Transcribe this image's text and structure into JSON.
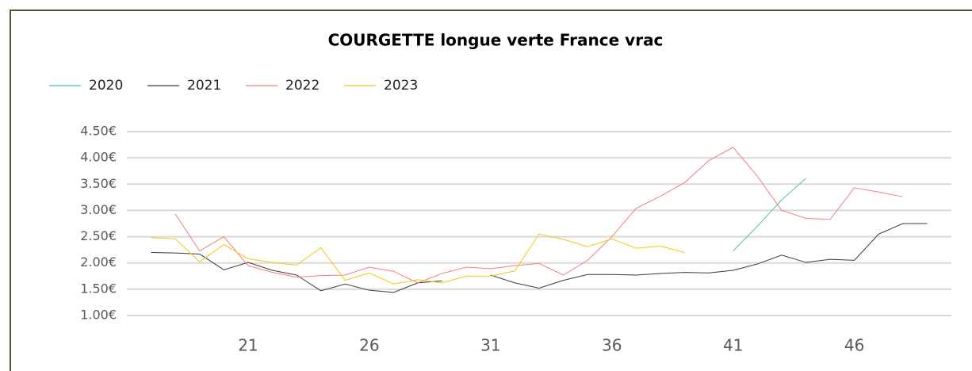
{
  "chart_data": {
    "type": "line",
    "title": "COURGETTE longue verte France vrac",
    "x": [
      17,
      18,
      19,
      20,
      21,
      22,
      23,
      24,
      25,
      26,
      27,
      28,
      29,
      30,
      31,
      32,
      33,
      34,
      35,
      36,
      37,
      38,
      39,
      40,
      41,
      42,
      43,
      44,
      45,
      46,
      47,
      48,
      49
    ],
    "xlim": [
      16,
      50
    ],
    "xticks": [
      21,
      26,
      31,
      36,
      41,
      46
    ],
    "ylim": [
      1,
      4.5
    ],
    "yticks": [
      {
        "value": 1,
        "label": "1.00€"
      },
      {
        "value": 1.5,
        "label": "1.50€"
      },
      {
        "value": 2,
        "label": "2.00€"
      },
      {
        "value": 2.5,
        "label": "2.50€"
      },
      {
        "value": 3,
        "label": "3.00€"
      },
      {
        "value": 3.5,
        "label": "3.50€"
      },
      {
        "value": 4,
        "label": "4.00€"
      },
      {
        "value": 4.5,
        "label": "4.50€"
      }
    ],
    "grid": true,
    "legend": "top-left",
    "series": [
      {
        "name": "2020",
        "color": "#3fc1c0",
        "values": [
          null,
          null,
          null,
          null,
          null,
          null,
          null,
          null,
          null,
          null,
          null,
          null,
          null,
          null,
          null,
          null,
          null,
          null,
          null,
          null,
          null,
          null,
          null,
          null,
          2.23,
          2.7,
          3.2,
          3.61,
          null,
          null,
          null,
          null,
          null
        ]
      },
      {
        "name": "2021",
        "color": "#3a3a3a",
        "values": [
          2.2,
          2.19,
          2.17,
          1.87,
          2.01,
          1.86,
          1.77,
          1.47,
          1.6,
          1.48,
          1.44,
          1.62,
          1.66,
          null,
          1.77,
          1.62,
          1.52,
          1.67,
          1.78,
          1.78,
          1.77,
          1.8,
          1.82,
          1.81,
          1.86,
          1.98,
          2.15,
          2.01,
          2.07,
          2.05,
          2.55,
          2.75,
          2.75
        ]
      },
      {
        "name": "2022",
        "color": "#f08080",
        "values": [
          null,
          2.93,
          2.23,
          2.5,
          1.95,
          1.82,
          1.73,
          1.76,
          1.77,
          1.92,
          1.84,
          1.62,
          1.8,
          1.92,
          1.89,
          1.95,
          1.99,
          1.77,
          2.05,
          2.5,
          3.04,
          3.27,
          3.53,
          3.95,
          4.2,
          3.65,
          3,
          2.85,
          2.83,
          3.43,
          3.35,
          3.26,
          null
        ]
      },
      {
        "name": "2023",
        "color": "#f2c811",
        "values": [
          2.48,
          2.46,
          2.02,
          2.35,
          2.08,
          2.01,
          1.96,
          2.29,
          1.67,
          1.81,
          1.6,
          1.68,
          1.62,
          1.75,
          1.75,
          1.85,
          2.55,
          2.45,
          2.31,
          2.46,
          2.28,
          2.32,
          2.2,
          null,
          null,
          null,
          null,
          null,
          null,
          null,
          null,
          null,
          null
        ]
      }
    ]
  }
}
